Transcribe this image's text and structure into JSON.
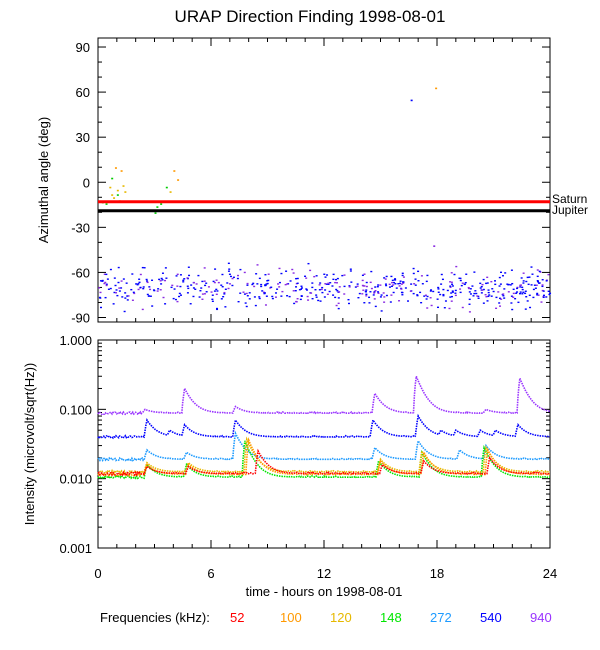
{
  "chart_data": [
    {
      "type": "scatter",
      "title": "URAP Direction Finding  1998-08-01",
      "ylabel": "Azimuthal angle (deg)",
      "xlim": [
        0,
        24
      ],
      "ylim": [
        -93,
        96
      ],
      "yticks": [
        "90",
        "60",
        "30",
        "0",
        "-30",
        "-60",
        "-90"
      ],
      "yticks_values": [
        90,
        60,
        30,
        0,
        -30,
        -60,
        -90
      ],
      "reference_lines": [
        {
          "name": "Saturn",
          "y": -13,
          "color": "#ff0000"
        },
        {
          "name": "Jupiter",
          "y": -19,
          "color": "#000000"
        }
      ],
      "scatter_points": {
        "x": [
          0.2,
          0.4,
          0.6,
          0.7,
          0.8,
          0.9,
          1.0,
          1.1,
          1.2,
          1.3,
          0.7,
          1.0,
          1.4,
          3.0,
          3.1,
          3.3,
          3.6,
          3.8,
          4.0,
          4.2,
          16.6,
          17.9,
          17.8
        ],
        "y": [
          -13,
          -14,
          -3,
          -8,
          -10,
          10,
          -5,
          -12,
          8,
          -2,
          3,
          -8,
          -6,
          -20,
          -16,
          -14,
          -3,
          -6,
          8,
          2,
          55,
          63,
          -42
        ],
        "colors": [
          "#00cc00",
          "#00cc00",
          "#e6b800",
          "#e6b800",
          "#e6b800",
          "#ff9900",
          "#e6b800",
          "#e6b800",
          "#ff9900",
          "#e6b800",
          "#00cc00",
          "#00cc00",
          "#e6b800",
          "#00cc00",
          "#00cc00",
          "#00cc00",
          "#00cc00",
          "#e6b800",
          "#ff9900",
          "#ff9900",
          "#0000ff",
          "#ff9900",
          "#8a2be2"
        ]
      },
      "scatter_band": {
        "y_center": -70,
        "y_spread": 9,
        "x_range": [
          0,
          24
        ],
        "colors": [
          "#0000ff",
          "#8a2be2"
        ]
      },
      "legend": "right"
    },
    {
      "type": "line",
      "ylabel": "Intensity (microvolt/sqrt(Hz))",
      "xlabel": "time - hours on 1998-08-01",
      "scale": "log",
      "ylim": [
        0.001,
        1.0
      ],
      "yticks": [
        "1.000",
        "0.100",
        "0.010",
        "0.001"
      ],
      "yticks_values": [
        1.0,
        0.1,
        0.01,
        0.001
      ],
      "xticks": [
        "0",
        "6",
        "12",
        "18",
        "24"
      ],
      "xticks_values": [
        0,
        6,
        12,
        18,
        24
      ],
      "series": [
        {
          "name": "940",
          "color": "#9933ff",
          "base": 0.088,
          "spikes": [
            [
              2.5,
              0.1
            ],
            [
              4.6,
              0.2
            ],
            [
              7.3,
              0.11
            ],
            [
              14.7,
              0.17
            ],
            [
              16.9,
              0.3
            ],
            [
              20.6,
              0.1
            ],
            [
              22.4,
              0.28
            ]
          ]
        },
        {
          "name": "540",
          "color": "#0000ff",
          "base": 0.04,
          "spikes": [
            [
              2.6,
              0.07
            ],
            [
              3.8,
              0.05
            ],
            [
              4.6,
              0.06
            ],
            [
              7.3,
              0.07
            ],
            [
              14.6,
              0.07
            ],
            [
              17.0,
              0.08
            ],
            [
              18.2,
              0.05
            ],
            [
              19.0,
              0.05
            ],
            [
              20.3,
              0.05
            ],
            [
              21.1,
              0.05
            ],
            [
              22.3,
              0.06
            ]
          ]
        },
        {
          "name": "272",
          "color": "#1e9bff",
          "base": 0.019,
          "spikes": [
            [
              2.6,
              0.026
            ],
            [
              4.7,
              0.024
            ],
            [
              7.3,
              0.045
            ],
            [
              14.7,
              0.028
            ],
            [
              17.0,
              0.035
            ],
            [
              19.2,
              0.026
            ],
            [
              20.6,
              0.03
            ]
          ]
        },
        {
          "name": "148",
          "color": "#00e600",
          "base": 0.0105,
          "spikes": [
            [
              2.6,
              0.016
            ],
            [
              4.7,
              0.016
            ],
            [
              7.8,
              0.035
            ],
            [
              14.9,
              0.018
            ],
            [
              17.2,
              0.024
            ],
            [
              20.5,
              0.028
            ]
          ]
        },
        {
          "name": "120",
          "color": "#e6b800",
          "base": 0.0125,
          "spikes": [
            [
              2.6,
              0.017
            ],
            [
              4.8,
              0.017
            ],
            [
              7.9,
              0.037
            ],
            [
              15.0,
              0.019
            ],
            [
              17.2,
              0.025
            ],
            [
              20.6,
              0.028
            ]
          ]
        },
        {
          "name": "100",
          "color": "#ff9900",
          "base": 0.0115,
          "spikes": [
            [
              2.6,
              0.016
            ],
            [
              4.8,
              0.016
            ],
            [
              8.0,
              0.036
            ],
            [
              15.0,
              0.018
            ],
            [
              17.3,
              0.024
            ],
            [
              20.7,
              0.026
            ]
          ]
        },
        {
          "name": "52",
          "color": "#ff0000",
          "base": 0.0118,
          "spikes": [
            [
              2.6,
              0.015
            ],
            [
              4.8,
              0.015
            ],
            [
              8.5,
              0.025
            ],
            [
              15.1,
              0.016
            ],
            [
              17.3,
              0.018
            ],
            [
              20.8,
              0.02
            ]
          ]
        }
      ]
    }
  ],
  "frequencies": {
    "label": "Frequencies (kHz):",
    "items": [
      {
        "label": "52",
        "color": "#ff0000"
      },
      {
        "label": "100",
        "color": "#ff9900"
      },
      {
        "label": "120",
        "color": "#e6b800"
      },
      {
        "label": "148",
        "color": "#00e600"
      },
      {
        "label": "272",
        "color": "#1e9bff"
      },
      {
        "label": "540",
        "color": "#0000ff"
      },
      {
        "label": "940",
        "color": "#9933ff"
      }
    ]
  }
}
